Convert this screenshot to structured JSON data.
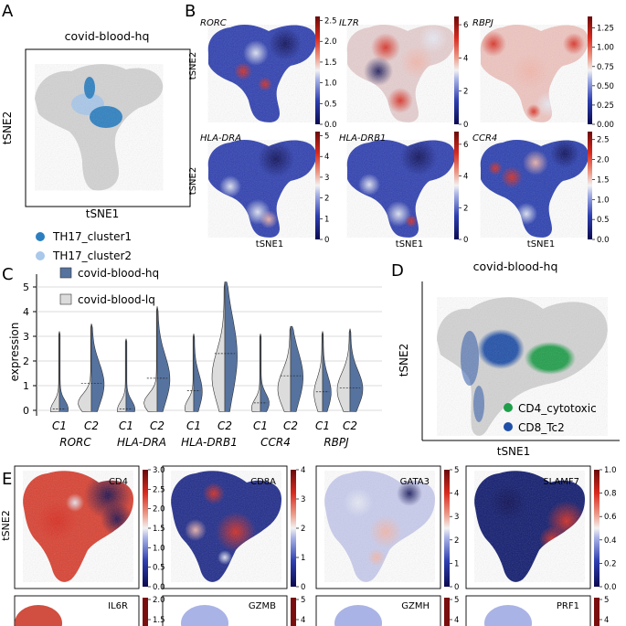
{
  "figure": {
    "panel_letters": [
      "A",
      "B",
      "C",
      "D",
      "E"
    ]
  },
  "panel_a": {
    "title": "covid-blood-hq",
    "xlabel": "tSNE1",
    "ylabel": "tSNE2",
    "legend": [
      {
        "label": "TH17_cluster1",
        "color": "#2b7fc1"
      },
      {
        "label": "TH17_cluster2",
        "color": "#a9c8ea"
      }
    ],
    "background_color": "#d3d3d3"
  },
  "panel_b": {
    "xlabel": "tSNE1",
    "ylabel": "tSNE2",
    "maps": [
      {
        "gene": "RORC",
        "ticks": [
          "0.0",
          "0.5",
          "1.0",
          "1.5",
          "2.0",
          "2.5"
        ],
        "max": 2.6
      },
      {
        "gene": "IL7R",
        "ticks": [
          "0",
          "2",
          "4",
          "6"
        ],
        "max": 6.5
      },
      {
        "gene": "RBPJ",
        "ticks": [
          "0.00",
          "0.25",
          "0.50",
          "0.75",
          "1.00",
          "1.25"
        ],
        "max": 1.4
      },
      {
        "gene": "HLA-DRA",
        "ticks": [
          "0",
          "1",
          "2",
          "3",
          "4",
          "5"
        ],
        "max": 5.2
      },
      {
        "gene": "HLA-DRB1",
        "ticks": [
          "0",
          "2",
          "4",
          "6"
        ],
        "max": 6.8
      },
      {
        "gene": "CCR4",
        "ticks": [
          "0.0",
          "0.5",
          "1.0",
          "1.5",
          "2.0",
          "2.5"
        ],
        "max": 2.7
      }
    ]
  },
  "panel_c": {
    "legend": [
      {
        "label": "covid-blood-hq",
        "color": "#56739f"
      },
      {
        "label": "covid-blood-lq",
        "color": "#dcdcdc"
      }
    ],
    "ylabel": "expression"
  },
  "chart_data": {
    "type": "violin",
    "title": "",
    "xlabel": "",
    "ylabel": "expression",
    "ylim": [
      -0.2,
      5.5
    ],
    "yticks": [
      "0",
      "1",
      "2",
      "3",
      "4",
      "5"
    ],
    "groups": [
      {
        "gene": "RORC",
        "categories": [
          "C1",
          "C2"
        ],
        "hq_median": [
          0.05,
          1.1
        ],
        "lq_median": [
          0.0,
          0.3
        ],
        "max": [
          3.2,
          3.5
        ]
      },
      {
        "gene": "HLA-DRA",
        "categories": [
          "C1",
          "C2"
        ],
        "hq_median": [
          0.05,
          1.3
        ],
        "lq_median": [
          0.0,
          0.3
        ],
        "max": [
          2.9,
          4.2
        ]
      },
      {
        "gene": "HLA-DRB1",
        "categories": [
          "C1",
          "C2"
        ],
        "hq_median": [
          0.8,
          2.3
        ],
        "lq_median": [
          0.1,
          1.4
        ],
        "max": [
          3.1,
          5.2
        ]
      },
      {
        "gene": "CCR4",
        "categories": [
          "C1",
          "C2"
        ],
        "hq_median": [
          0.3,
          1.4
        ],
        "lq_median": [
          0.1,
          0.9
        ],
        "max": [
          3.1,
          3.4
        ]
      },
      {
        "gene": "RBPJ",
        "categories": [
          "C1",
          "C2"
        ],
        "hq_median": [
          0.75,
          0.9
        ],
        "lq_median": [
          0.7,
          0.85
        ],
        "max": [
          3.2,
          3.3
        ]
      }
    ]
  },
  "panel_d": {
    "title": "covid-blood-hq",
    "xlabel": "tSNE1",
    "ylabel": "tSNE2",
    "legend": [
      {
        "label": "CD4_cytotoxic",
        "color": "#1f9e4a"
      },
      {
        "label": "CD8_Tc2",
        "color": "#1f4fa8"
      }
    ]
  },
  "panel_e": {
    "ylabel": "tSNE2",
    "maps": [
      {
        "gene": "CD4",
        "ticks": [
          "0.0",
          "0.5",
          "1.0",
          "1.5",
          "2.0",
          "2.5",
          "3.0"
        ],
        "max": 3.0
      },
      {
        "gene": "CD8A",
        "ticks": [
          "0",
          "1",
          "2",
          "3",
          "4"
        ],
        "max": 4.0
      },
      {
        "gene": "GATA3",
        "ticks": [
          "0",
          "1",
          "2",
          "3",
          "4",
          "5"
        ],
        "max": 5.0
      },
      {
        "gene": "SLAMF7",
        "ticks": [
          "0.0",
          "0.2",
          "0.4",
          "0.6",
          "0.8",
          "1.0"
        ],
        "max": 1.0
      }
    ],
    "maps_row2": [
      {
        "gene": "IL6R",
        "ticks": [
          "2.0",
          "1.5"
        ]
      },
      {
        "gene": "GZMB",
        "ticks": [
          "5",
          "4"
        ]
      },
      {
        "gene": "GZMH",
        "ticks": [
          "5",
          "4"
        ]
      },
      {
        "gene": "PRF1",
        "ticks": [
          "5",
          "4"
        ]
      }
    ]
  }
}
